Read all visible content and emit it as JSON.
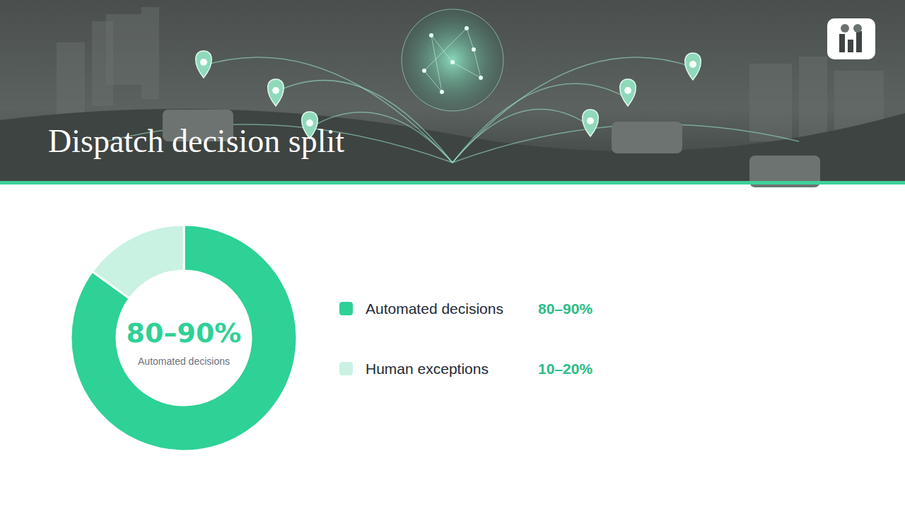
{
  "chart_data": {
    "type": "donut",
    "title": "Dispatch decision split",
    "categories": [
      "Automated decisions",
      "Human exceptions"
    ],
    "values": [
      85,
      15
    ],
    "value_labels": [
      "80–90%",
      "10–20%"
    ],
    "colors": [
      "#2ed196",
      "#c9f2e3"
    ],
    "legend": "right"
  }
}
